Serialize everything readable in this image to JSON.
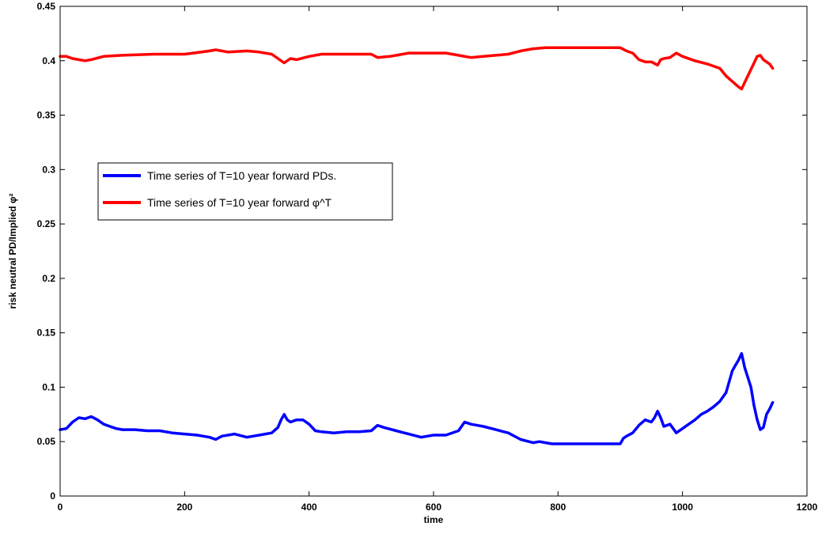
{
  "chart_data": {
    "type": "line",
    "title": "",
    "xlabel": "time",
    "ylabel": "risk neutral PD/Implied φ²",
    "xlim": [
      0,
      1200
    ],
    "ylim": [
      0,
      0.45
    ],
    "xticks": [
      0,
      200,
      400,
      600,
      800,
      1000,
      1200
    ],
    "yticks": [
      0,
      0.05,
      0.1,
      0.15,
      0.2,
      0.25,
      0.3,
      0.35,
      0.4,
      0.45
    ],
    "xtick_labels": [
      "0",
      "200",
      "400",
      "600",
      "800",
      "1000",
      "1200"
    ],
    "ytick_labels": [
      "0",
      "0.05",
      "0.1",
      "0.15",
      "0.2",
      "0.25",
      "0.3",
      "0.35",
      "0.4",
      "0.45"
    ],
    "grid": false,
    "legend_position": "left-middle",
    "series": [
      {
        "name": "Time series of T=10 year forward PDs.",
        "color": "#0000ff",
        "x": [
          0,
          10,
          20,
          30,
          40,
          50,
          60,
          70,
          80,
          90,
          100,
          120,
          140,
          160,
          180,
          200,
          220,
          240,
          250,
          260,
          280,
          300,
          320,
          340,
          350,
          355,
          360,
          365,
          370,
          380,
          390,
          400,
          410,
          420,
          440,
          460,
          480,
          500,
          510,
          520,
          540,
          560,
          580,
          600,
          620,
          640,
          650,
          660,
          680,
          700,
          720,
          740,
          760,
          770,
          780,
          790,
          800,
          850,
          900,
          905,
          910,
          920,
          930,
          940,
          950,
          955,
          960,
          965,
          970,
          980,
          990,
          1000,
          1010,
          1020,
          1030,
          1040,
          1050,
          1060,
          1070,
          1080,
          1085,
          1090,
          1095,
          1100,
          1110,
          1115,
          1120,
          1125,
          1130,
          1135,
          1140,
          1145
        ],
        "y": [
          0.061,
          0.062,
          0.068,
          0.072,
          0.071,
          0.073,
          0.07,
          0.066,
          0.064,
          0.062,
          0.061,
          0.061,
          0.06,
          0.06,
          0.058,
          0.057,
          0.056,
          0.054,
          0.052,
          0.055,
          0.057,
          0.054,
          0.056,
          0.058,
          0.063,
          0.07,
          0.075,
          0.07,
          0.068,
          0.07,
          0.07,
          0.066,
          0.06,
          0.059,
          0.058,
          0.059,
          0.059,
          0.06,
          0.065,
          0.063,
          0.06,
          0.057,
          0.054,
          0.056,
          0.056,
          0.06,
          0.068,
          0.066,
          0.064,
          0.061,
          0.058,
          0.052,
          0.049,
          0.05,
          0.049,
          0.048,
          0.048,
          0.048,
          0.048,
          0.053,
          0.055,
          0.058,
          0.065,
          0.07,
          0.068,
          0.072,
          0.078,
          0.072,
          0.064,
          0.066,
          0.058,
          0.062,
          0.066,
          0.07,
          0.075,
          0.078,
          0.082,
          0.087,
          0.095,
          0.115,
          0.12,
          0.125,
          0.131,
          0.118,
          0.1,
          0.083,
          0.07,
          0.061,
          0.063,
          0.075,
          0.08,
          0.086
        ]
      },
      {
        "name": "Time series of T=10 year forward φ^T",
        "color": "#ff0000",
        "x": [
          0,
          10,
          20,
          30,
          40,
          50,
          70,
          100,
          150,
          200,
          240,
          250,
          270,
          300,
          320,
          340,
          350,
          360,
          370,
          380,
          400,
          420,
          460,
          500,
          510,
          530,
          560,
          600,
          620,
          640,
          660,
          680,
          700,
          720,
          740,
          760,
          780,
          800,
          850,
          900,
          910,
          920,
          930,
          940,
          950,
          960,
          965,
          970,
          980,
          990,
          1000,
          1020,
          1040,
          1060,
          1070,
          1080,
          1090,
          1095,
          1100,
          1110,
          1120,
          1125,
          1130,
          1140,
          1145
        ],
        "y": [
          0.404,
          0.404,
          0.402,
          0.401,
          0.4,
          0.401,
          0.404,
          0.405,
          0.406,
          0.406,
          0.409,
          0.41,
          0.408,
          0.409,
          0.408,
          0.406,
          0.402,
          0.398,
          0.402,
          0.401,
          0.404,
          0.406,
          0.406,
          0.406,
          0.403,
          0.404,
          0.407,
          0.407,
          0.407,
          0.405,
          0.403,
          0.404,
          0.405,
          0.406,
          0.409,
          0.411,
          0.412,
          0.412,
          0.412,
          0.412,
          0.409,
          0.407,
          0.401,
          0.399,
          0.399,
          0.396,
          0.401,
          0.402,
          0.403,
          0.407,
          0.404,
          0.4,
          0.397,
          0.393,
          0.386,
          0.381,
          0.376,
          0.374,
          0.38,
          0.392,
          0.404,
          0.405,
          0.401,
          0.397,
          0.393
        ]
      }
    ]
  }
}
